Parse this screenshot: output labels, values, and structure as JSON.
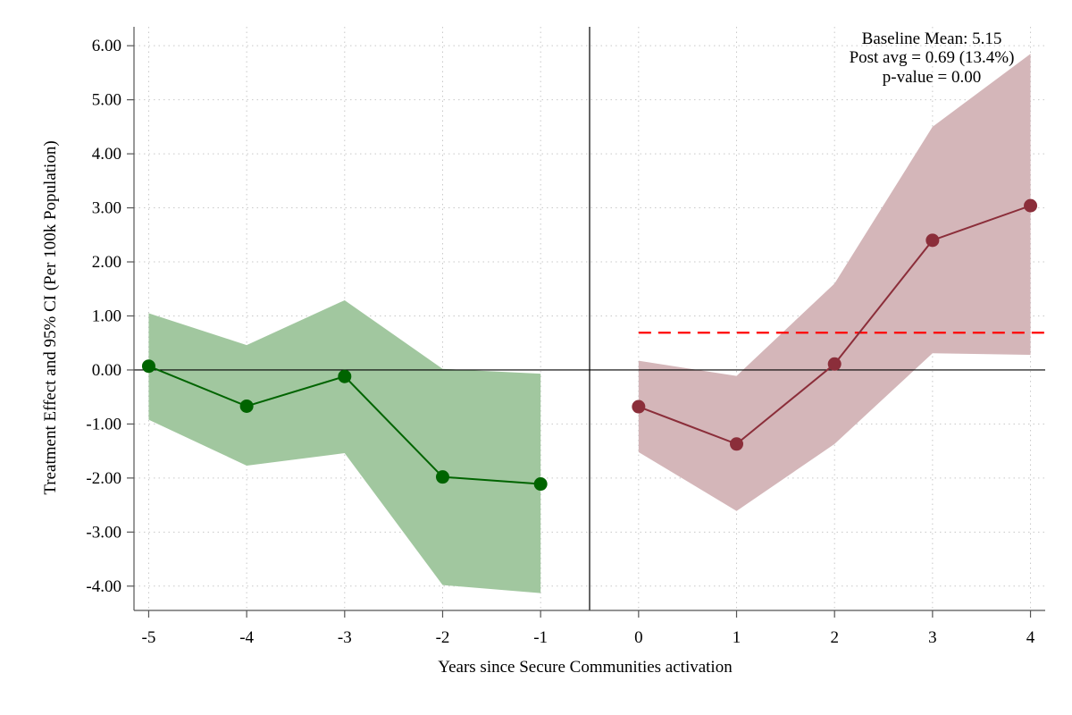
{
  "chart_data": {
    "type": "line",
    "title": "",
    "xlabel": "Years since Secure Communities activation",
    "ylabel": "Treatment Effect and 95% CI (Per 100k Population)",
    "x_ticks": [
      "-5",
      "-4",
      "-3",
      "-2",
      "-1",
      "0",
      "1",
      "2",
      "3",
      "4"
    ],
    "y_ticks": [
      "-4.00",
      "-3.00",
      "-2.00",
      "-1.00",
      "0.00",
      "1.00",
      "2.00",
      "3.00",
      "4.00",
      "5.00",
      "6.00"
    ],
    "xlim": [
      -5.15,
      4.15
    ],
    "ylim": [
      -4.45,
      6.35
    ],
    "grid": true,
    "event_line_x": -0.5,
    "zero_line_y": 0,
    "series": [
      {
        "name": "pre-period",
        "color": "#006400",
        "ci_color": "#a1c79f",
        "x": [
          -5,
          -4,
          -3,
          -2,
          -1
        ],
        "y": [
          0.07,
          -0.67,
          -0.12,
          -1.98,
          -2.11
        ],
        "ci_lower": [
          -0.92,
          -1.77,
          -1.54,
          -3.98,
          -4.13
        ],
        "ci_upper": [
          1.05,
          0.46,
          1.29,
          0.02,
          -0.07
        ]
      },
      {
        "name": "post-period",
        "color": "#8b2e3a",
        "ci_color": "#d4b6b9",
        "x": [
          0,
          1,
          2,
          3,
          4
        ],
        "y": [
          -0.68,
          -1.37,
          0.11,
          2.4,
          3.04
        ],
        "ci_lower": [
          -1.52,
          -2.61,
          -1.37,
          0.31,
          0.28
        ],
        "ci_upper": [
          0.17,
          -0.11,
          1.6,
          4.5,
          5.85
        ]
      }
    ],
    "post_avg_line": {
      "value": 0.69,
      "x_start": 0,
      "x_end": 4.15,
      "color": "#ff0000"
    },
    "annotations": [
      "Baseline Mean: 5.15",
      "Post avg = 0.69 (13.4%)",
      "p-value = 0.00"
    ]
  }
}
